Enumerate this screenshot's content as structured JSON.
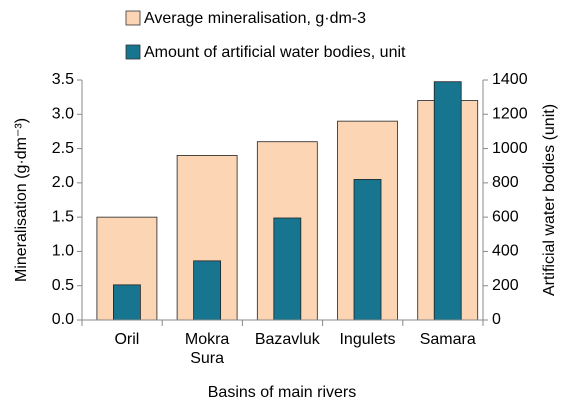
{
  "chart_data": {
    "type": "bar",
    "x_label": "Basins of main rivers",
    "y_label": "Mineralisation (g·dm⁻³)",
    "y2_label": "Artificial water bodies (unit)",
    "categories": [
      "Oril",
      "Mokra\nSura",
      "Bazavluk",
      "Ingulets",
      "Samara"
    ],
    "series": [
      {
        "name": "Average mineralisation, g·dm-3",
        "color": "#fcd5b5",
        "values": [
          1.5,
          2.4,
          2.6,
          2.9,
          3.2
        ]
      },
      {
        "name": "Amount of artificial water bodies, unit",
        "color": "#17758f",
        "axis": "y2",
        "values": [
          205,
          345,
          595,
          820,
          1390
        ]
      }
    ],
    "ylim": [
      0,
      3.5
    ],
    "yticks": [
      {
        "value": 0,
        "label": "0.0"
      },
      0.5,
      {
        "value": 1,
        "label": "1.0"
      },
      1.5,
      {
        "value": 2,
        "label": "2.0"
      },
      2.5,
      {
        "value": 3,
        "label": "3.0"
      },
      3.5
    ],
    "y2lim": [
      0,
      1400
    ],
    "y2ticks": [
      0,
      200,
      400,
      600,
      800,
      1000,
      1200,
      1400
    ],
    "grid": false
  }
}
